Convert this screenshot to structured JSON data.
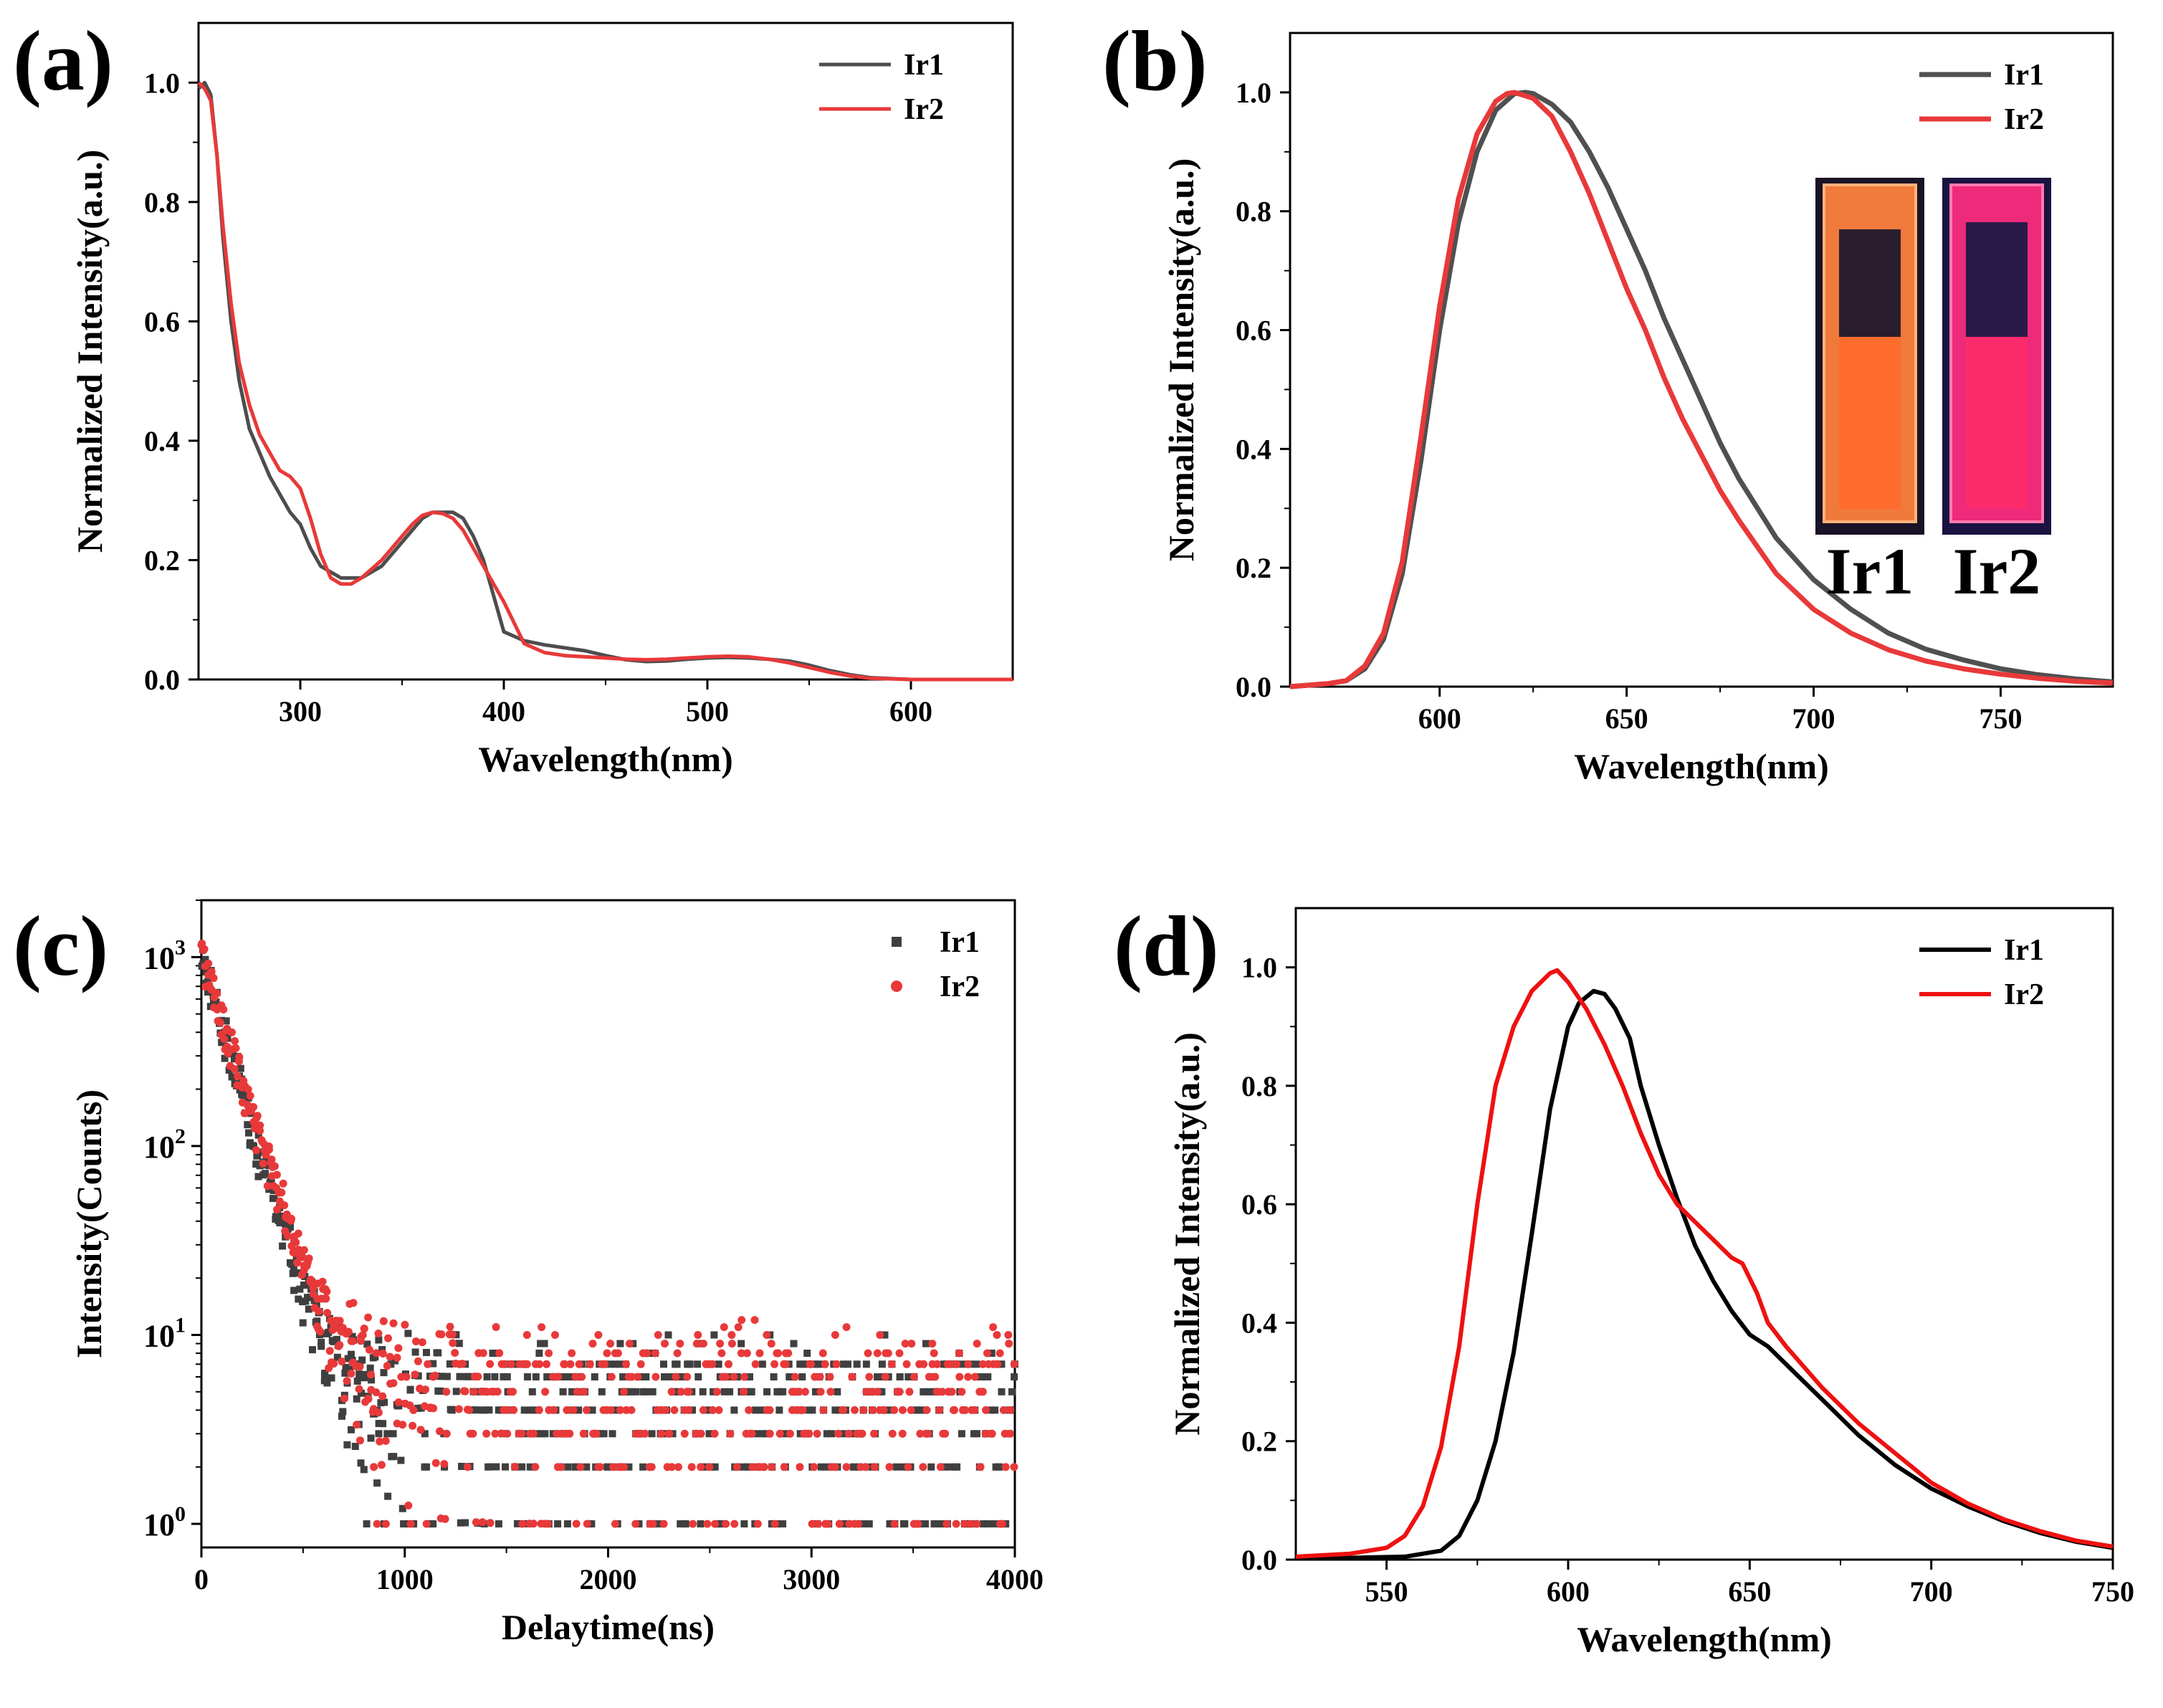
{
  "figure": {
    "panels": [
      {
        "id": "a",
        "label": "(a)"
      },
      {
        "id": "b",
        "label": "(b)"
      },
      {
        "id": "c",
        "label": "(c)"
      },
      {
        "id": "d",
        "label": "(d)"
      }
    ]
  },
  "colors": {
    "Ir1_abs": "#4d4d4d",
    "Ir1_ems": "#505050",
    "Ir1_decay": "#3f3f3f",
    "Ir1_film": "#000000",
    "Ir2": "#e8393a",
    "Ir2_film": "#ee1111"
  },
  "chart_data": [
    {
      "panel": "a",
      "type": "line",
      "xlabel": "Wavelength(nm)",
      "ylabel": "Normalized Intensity(a.u.)",
      "xlim": [
        250,
        650
      ],
      "ylim": [
        0,
        1.1
      ],
      "xticks": [
        300,
        400,
        500,
        600
      ],
      "yticks": [
        0.0,
        0.2,
        0.4,
        0.6,
        0.8,
        1.0
      ],
      "ytick_labels": [
        "0.0",
        "0.2",
        "0.4",
        "0.6",
        "0.8",
        "1.0"
      ],
      "legend_position": "top-right",
      "series": [
        {
          "name": "Ir1",
          "color": "#4d4d4d",
          "x": [
            250,
            253,
            256,
            259,
            262,
            266,
            270,
            275,
            280,
            285,
            290,
            295,
            300,
            305,
            310,
            315,
            320,
            330,
            340,
            350,
            355,
            360,
            365,
            370,
            375,
            380,
            385,
            390,
            395,
            400,
            410,
            420,
            430,
            440,
            450,
            460,
            470,
            480,
            490,
            500,
            510,
            520,
            530,
            540,
            550,
            560,
            570,
            580,
            600,
            620,
            650
          ],
          "y": [
            0.99,
            1.0,
            0.98,
            0.88,
            0.74,
            0.6,
            0.5,
            0.42,
            0.38,
            0.34,
            0.31,
            0.28,
            0.26,
            0.22,
            0.19,
            0.18,
            0.17,
            0.17,
            0.19,
            0.23,
            0.25,
            0.27,
            0.28,
            0.28,
            0.28,
            0.27,
            0.24,
            0.2,
            0.14,
            0.08,
            0.065,
            0.058,
            0.053,
            0.048,
            0.04,
            0.033,
            0.03,
            0.031,
            0.034,
            0.036,
            0.037,
            0.036,
            0.034,
            0.031,
            0.024,
            0.015,
            0.008,
            0.003,
            0.0,
            0.0,
            0.0
          ]
        },
        {
          "name": "Ir2",
          "color": "#e8393a",
          "x": [
            250,
            253,
            256,
            259,
            262,
            266,
            270,
            275,
            280,
            285,
            290,
            295,
            300,
            305,
            310,
            315,
            320,
            325,
            330,
            340,
            350,
            355,
            360,
            365,
            370,
            375,
            380,
            385,
            390,
            395,
            400,
            410,
            420,
            430,
            440,
            450,
            460,
            470,
            480,
            490,
            500,
            510,
            520,
            530,
            540,
            550,
            560,
            570,
            580,
            600,
            620,
            650
          ],
          "y": [
            1.0,
            0.99,
            0.97,
            0.88,
            0.76,
            0.63,
            0.53,
            0.46,
            0.41,
            0.38,
            0.35,
            0.34,
            0.32,
            0.27,
            0.21,
            0.17,
            0.16,
            0.16,
            0.17,
            0.2,
            0.24,
            0.26,
            0.275,
            0.28,
            0.278,
            0.27,
            0.25,
            0.22,
            0.19,
            0.16,
            0.13,
            0.06,
            0.045,
            0.04,
            0.038,
            0.036,
            0.034,
            0.033,
            0.034,
            0.036,
            0.038,
            0.039,
            0.038,
            0.034,
            0.028,
            0.02,
            0.012,
            0.006,
            0.002,
            0.0,
            0.0,
            0.0
          ]
        }
      ]
    },
    {
      "panel": "b",
      "type": "line",
      "xlabel": "Wavelength(nm)",
      "ylabel": "Normalized Intensity(a.u.)",
      "xlim": [
        560,
        780
      ],
      "ylim": [
        0,
        1.1
      ],
      "xticks": [
        600,
        650,
        700,
        750
      ],
      "yticks": [
        0.0,
        0.2,
        0.4,
        0.6,
        0.8,
        1.0
      ],
      "ytick_labels": [
        "0.0",
        "0.2",
        "0.4",
        "0.6",
        "0.8",
        "1.0"
      ],
      "legend_position": "top-right",
      "inset": {
        "labels": [
          "Ir1",
          "Ir2"
        ],
        "position": "right"
      },
      "series": [
        {
          "name": "Ir1",
          "color": "#505050",
          "x": [
            560,
            570,
            575,
            580,
            585,
            590,
            595,
            600,
            605,
            610,
            615,
            620,
            623,
            625,
            630,
            635,
            640,
            645,
            650,
            655,
            660,
            665,
            670,
            675,
            680,
            690,
            700,
            710,
            720,
            730,
            740,
            750,
            760,
            770,
            780
          ],
          "y": [
            0.0,
            0.005,
            0.01,
            0.03,
            0.08,
            0.19,
            0.38,
            0.6,
            0.78,
            0.9,
            0.97,
            0.998,
            1.0,
            0.998,
            0.98,
            0.95,
            0.9,
            0.84,
            0.77,
            0.7,
            0.62,
            0.55,
            0.48,
            0.41,
            0.35,
            0.25,
            0.18,
            0.13,
            0.09,
            0.063,
            0.045,
            0.03,
            0.02,
            0.013,
            0.008
          ]
        },
        {
          "name": "Ir2",
          "color": "#e8393a",
          "x": [
            560,
            570,
            575,
            580,
            585,
            590,
            595,
            600,
            605,
            610,
            615,
            618,
            620,
            625,
            630,
            635,
            640,
            645,
            650,
            655,
            660,
            665,
            670,
            675,
            680,
            690,
            700,
            710,
            720,
            730,
            740,
            750,
            760,
            770,
            780
          ],
          "y": [
            0.0,
            0.005,
            0.01,
            0.035,
            0.09,
            0.21,
            0.42,
            0.64,
            0.82,
            0.93,
            0.985,
            0.998,
            1.0,
            0.99,
            0.96,
            0.9,
            0.83,
            0.75,
            0.67,
            0.6,
            0.52,
            0.45,
            0.39,
            0.33,
            0.28,
            0.19,
            0.13,
            0.09,
            0.062,
            0.043,
            0.03,
            0.021,
            0.014,
            0.009,
            0.006
          ]
        }
      ]
    },
    {
      "panel": "c",
      "type": "scatter",
      "xlabel": "Delaytime(ns)",
      "ylabel": "Intensity(Counts)",
      "xlim": [
        0,
        4000
      ],
      "ylim": [
        0.75,
        2000
      ],
      "yscale": "log",
      "xticks": [
        0,
        1000,
        2000,
        3000,
        4000
      ],
      "yticks": [
        1,
        10,
        100,
        1000
      ],
      "ytick_labels": [
        {
          "base": "10",
          "exp": "0"
        },
        {
          "base": "10",
          "exp": "1"
        },
        {
          "base": "10",
          "exp": "2"
        },
        {
          "base": "10",
          "exp": "3"
        }
      ],
      "legend_position": "top-right",
      "series": [
        {
          "name": "Ir1",
          "color": "#3f3f3f",
          "marker": "square",
          "peak": 1000,
          "tau_ns": 115,
          "baseline_range": [
            1,
            12
          ]
        },
        {
          "name": "Ir2",
          "color": "#e8393a",
          "marker": "circle",
          "peak": 1000,
          "tau_ns": 125,
          "baseline_range": [
            1,
            14
          ]
        }
      ]
    },
    {
      "panel": "d",
      "type": "line",
      "xlabel": "Wavelength(nm)",
      "ylabel": "Normalized Intensity(a.u.)",
      "xlim": [
        525,
        750
      ],
      "ylim": [
        0,
        1.1
      ],
      "xticks": [
        550,
        600,
        650,
        700,
        750
      ],
      "yticks": [
        0.0,
        0.2,
        0.4,
        0.6,
        0.8,
        1.0
      ],
      "ytick_labels": [
        "0.0",
        "0.2",
        "0.4",
        "0.6",
        "0.8",
        "1.0"
      ],
      "legend_position": "top-right",
      "series": [
        {
          "name": "Ir1",
          "color": "#000000",
          "x": [
            525,
            540,
            555,
            565,
            570,
            575,
            580,
            585,
            590,
            595,
            600,
            603,
            607,
            610,
            613,
            617,
            620,
            625,
            630,
            635,
            640,
            645,
            650,
            655,
            660,
            670,
            680,
            690,
            700,
            710,
            720,
            730,
            740,
            750
          ],
          "y": [
            0.005,
            0.003,
            0.005,
            0.015,
            0.04,
            0.1,
            0.2,
            0.35,
            0.55,
            0.76,
            0.9,
            0.94,
            0.96,
            0.955,
            0.93,
            0.88,
            0.8,
            0.7,
            0.61,
            0.53,
            0.47,
            0.42,
            0.38,
            0.36,
            0.33,
            0.27,
            0.21,
            0.16,
            0.12,
            0.09,
            0.065,
            0.045,
            0.03,
            0.02
          ]
        },
        {
          "name": "Ir2",
          "color": "#ee1111",
          "x": [
            525,
            540,
            550,
            555,
            560,
            565,
            570,
            575,
            580,
            585,
            590,
            595,
            597,
            600,
            605,
            610,
            615,
            620,
            625,
            630,
            635,
            640,
            645,
            648,
            652,
            655,
            660,
            670,
            680,
            690,
            700,
            710,
            720,
            730,
            740,
            750
          ],
          "y": [
            0.005,
            0.01,
            0.02,
            0.04,
            0.09,
            0.19,
            0.36,
            0.6,
            0.8,
            0.9,
            0.96,
            0.99,
            0.995,
            0.975,
            0.93,
            0.87,
            0.8,
            0.72,
            0.65,
            0.6,
            0.57,
            0.54,
            0.51,
            0.5,
            0.45,
            0.4,
            0.36,
            0.29,
            0.23,
            0.18,
            0.13,
            0.095,
            0.068,
            0.048,
            0.032,
            0.022
          ]
        }
      ]
    }
  ]
}
